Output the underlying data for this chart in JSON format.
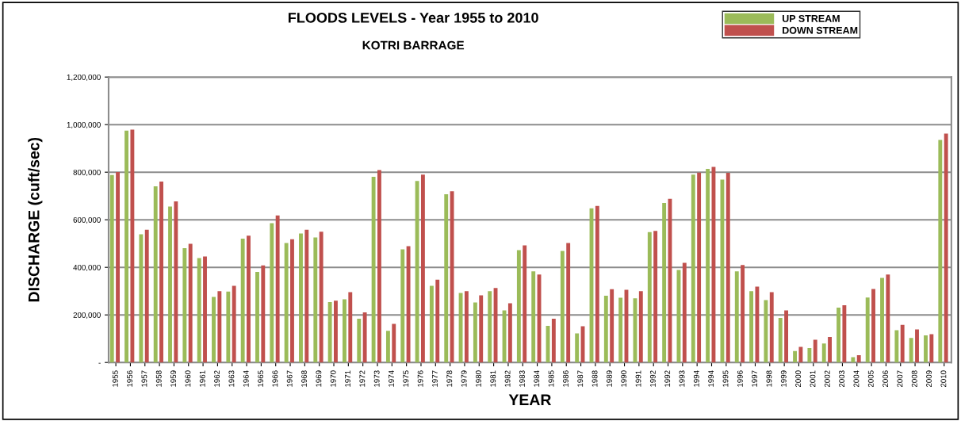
{
  "chart_data": {
    "type": "bar",
    "title": "FLOODS LEVELS - Year 1955 to 2010",
    "subtitle": "KOTRI BARRAGE",
    "xlabel": "YEAR",
    "ylabel": "DISCHARGE (cuft/sec)",
    "categories": [
      "1955",
      "1956",
      "1957",
      "1958",
      "1959",
      "1960",
      "1961",
      "1962",
      "1963",
      "1964",
      "1965",
      "1966",
      "1967",
      "1968",
      "1969",
      "1970",
      "1971",
      "1972",
      "1973",
      "1974",
      "1975",
      "1976",
      "1977",
      "1978",
      "1979",
      "1980",
      "1981",
      "1982",
      "1983",
      "1984",
      "1985",
      "1986",
      "1987",
      "1988",
      "1989",
      "1990",
      "1991",
      "1992",
      "1992",
      "1993",
      "1994",
      "1994",
      "1995",
      "1996",
      "1997",
      "1998",
      "1999",
      "2000",
      "2001",
      "2002",
      "2003",
      "2004",
      "2005",
      "2006",
      "2007",
      "2008",
      "2009",
      "2010"
    ],
    "series": [
      {
        "name": "UP STREAM",
        "color": "#9bbb59",
        "values": [
          788000,
          975000,
          539000,
          741000,
          656000,
          481000,
          439000,
          276000,
          298000,
          521000,
          381000,
          586000,
          502000,
          542000,
          526000,
          254000,
          266000,
          184000,
          781000,
          133000,
          476000,
          763000,
          322000,
          707000,
          292000,
          252000,
          300000,
          219000,
          472000,
          383000,
          154000,
          469000,
          122000,
          648000,
          281000,
          272000,
          270000,
          548000,
          671000,
          389000,
          790000,
          814000,
          769000,
          383000,
          300000,
          262000,
          187000,
          48000,
          61000,
          80000,
          231000,
          22000,
          273000,
          356000,
          136000,
          103000,
          114000,
          936000
        ]
      },
      {
        "name": "DOWN STREAM",
        "color": "#c0504d",
        "values": [
          801000,
          979000,
          558000,
          761000,
          677000,
          499000,
          446000,
          300000,
          322000,
          533000,
          408000,
          618000,
          518000,
          558000,
          550000,
          260000,
          296000,
          211000,
          809000,
          162000,
          489000,
          790000,
          348000,
          720000,
          300000,
          282000,
          313000,
          249000,
          492000,
          370000,
          184000,
          502000,
          152000,
          658000,
          308000,
          306000,
          300000,
          553000,
          688000,
          419000,
          798000,
          822000,
          797000,
          410000,
          319000,
          296000,
          219000,
          66000,
          96000,
          107000,
          241000,
          31000,
          309000,
          370000,
          158000,
          139000,
          119000,
          962000
        ]
      }
    ],
    "ylim": [
      0,
      1200000
    ],
    "yticks": [
      {
        "value": 0,
        "label": "-"
      },
      {
        "value": 200000,
        "label": "200,000"
      },
      {
        "value": 400000,
        "label": "400,000"
      },
      {
        "value": 600000,
        "label": "600,000"
      },
      {
        "value": 800000,
        "label": "800,000"
      },
      {
        "value": 1000000,
        "label": "1,000,000"
      },
      {
        "value": 1200000,
        "label": "1,200,000"
      }
    ],
    "grid": "y",
    "legend": "top right"
  }
}
